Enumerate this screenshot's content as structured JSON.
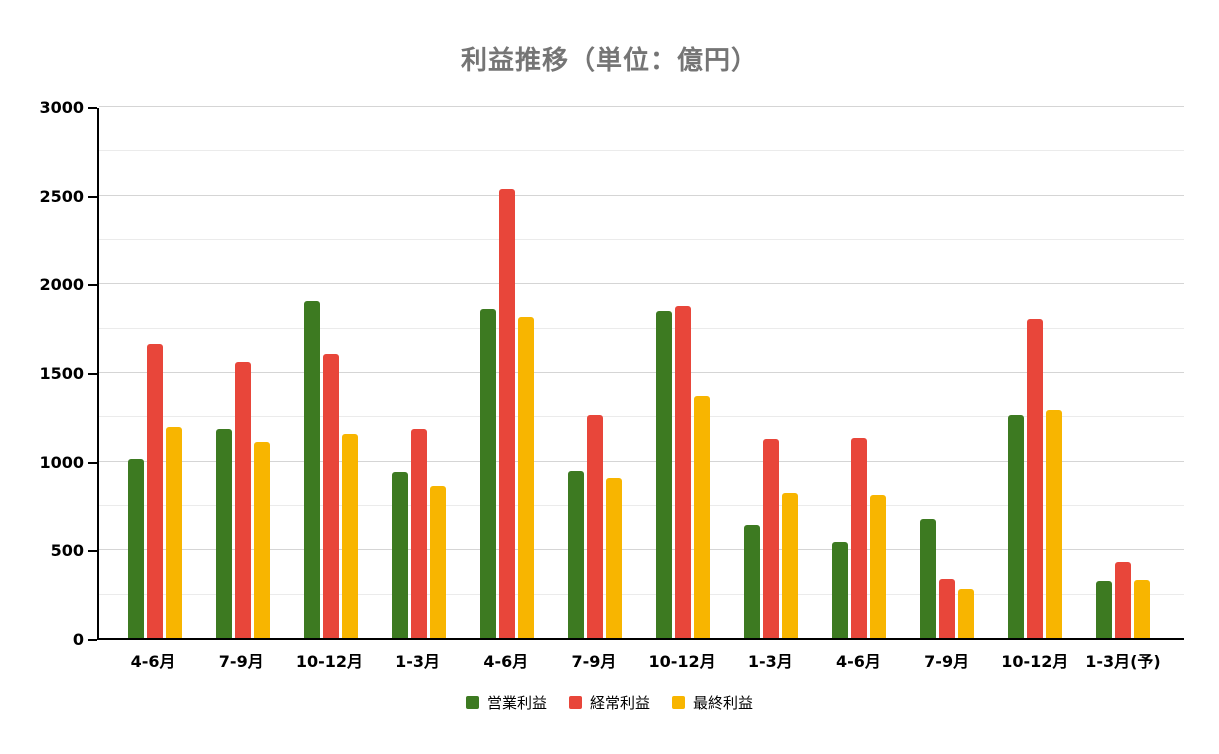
{
  "title": "利益推移（単位：億円）",
  "title_color": "#757575",
  "chart_data": {
    "type": "bar",
    "title": "利益推移（単位：億円）",
    "categories": [
      "4-6月",
      "7-9月",
      "10-12月",
      "1-3月",
      "4-6月",
      "7-9月",
      "10-12月",
      "1-3月",
      "4-6月",
      "7-9月",
      "10-12月",
      "1-3月(予)"
    ],
    "series": [
      {
        "key": "operating",
        "name": "営業利益",
        "color": "#3d7a21",
        "values": [
          1010,
          1180,
          1900,
          935,
          1855,
          940,
          1845,
          640,
          540,
          670,
          1255,
          320
        ]
      },
      {
        "key": "ordinary",
        "name": "経常利益",
        "color": "#e8463a",
        "values": [
          1660,
          1555,
          1600,
          1180,
          2530,
          1260,
          1870,
          1125,
          1130,
          330,
          1800,
          430
        ]
      },
      {
        "key": "net",
        "name": "最終利益",
        "color": "#f8b500",
        "values": [
          1190,
          1105,
          1150,
          860,
          1810,
          900,
          1365,
          820,
          805,
          275,
          1285,
          325
        ]
      }
    ],
    "xlabel": "",
    "ylabel": "",
    "ylim": [
      0,
      3000
    ],
    "y_ticks": [
      "0",
      "500",
      "1000",
      "1500",
      "2000",
      "2500",
      "3000"
    ],
    "y_tick_step": 500,
    "y_minor_step": 250,
    "grid": true,
    "legend_position": "bottom",
    "gridline_major_color": "#d5d5d5",
    "gridline_minor_color": "#ebebeb",
    "axis_color": "#000000"
  }
}
